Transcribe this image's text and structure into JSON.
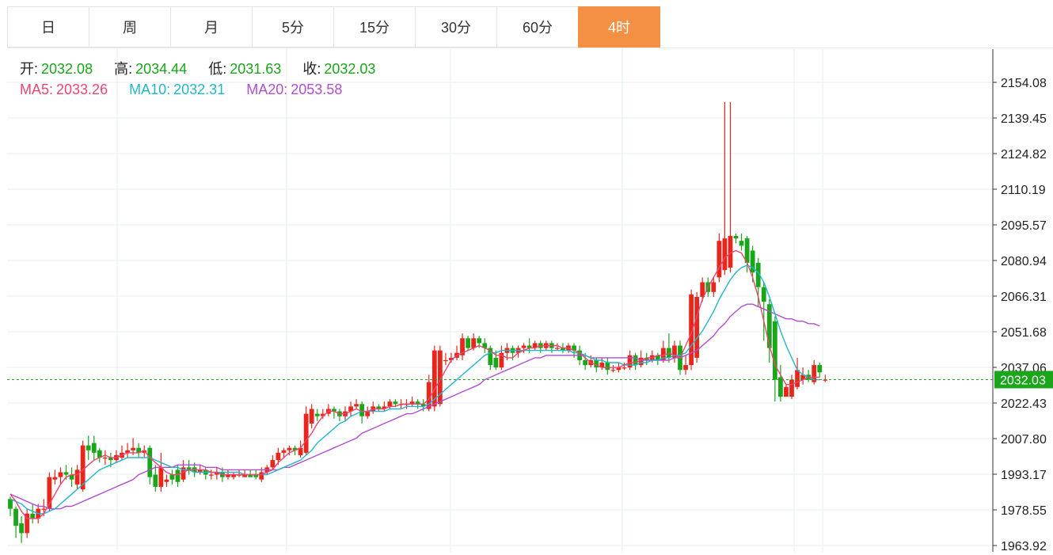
{
  "tabs": [
    "日",
    "周",
    "月",
    "5分",
    "15分",
    "30分",
    "60分",
    "4时"
  ],
  "active_tab": "4时",
  "ohlc": {
    "open_label": "开:",
    "open": "2032.08",
    "high_label": "高:",
    "high": "2034.44",
    "low_label": "低:",
    "low": "2031.63",
    "close_label": "收:",
    "close": "2032.03"
  },
  "ma": {
    "ma5_label": "MA5:",
    "ma5": "2033.26",
    "ma10_label": "MA10:",
    "ma10": "2032.31",
    "ma20_label": "MA20:",
    "ma20": "2053.58"
  },
  "colors": {
    "up": "#e8261c",
    "down": "#1aa51a",
    "ma5": "#e8476f",
    "ma10": "#22b6cc",
    "ma20": "#b04ecf",
    "last_price": "#1aa51a",
    "grid": "#e6edf3"
  },
  "chart_data": {
    "type": "candlestick",
    "y_ticks": [
      "2154.08",
      "2139.45",
      "2124.82",
      "2110.19",
      "2095.57",
      "2080.94",
      "2066.31",
      "2051.68",
      "2037.06",
      "2022.43",
      "2007.80",
      "1993.17",
      "1978.55",
      "1963.92"
    ],
    "ylim": [
      1963.92,
      2154.08
    ],
    "last_price": "2032.03",
    "candles": [
      [
        1983,
        1979,
        1984,
        1976
      ],
      [
        1979,
        1972,
        1980,
        1967
      ],
      [
        1973,
        1969,
        1976,
        1965
      ],
      [
        1969,
        1977,
        1979,
        1967
      ],
      [
        1977,
        1975,
        1981,
        1973
      ],
      [
        1975,
        1979,
        1981,
        1973
      ],
      [
        1979,
        1979,
        1983,
        1976
      ],
      [
        1979,
        1992,
        1994,
        1978
      ],
      [
        1991,
        1992,
        1995,
        1989
      ],
      [
        1992,
        1994,
        1996,
        1989
      ],
      [
        1994,
        1993,
        1997,
        1991
      ],
      [
        1993,
        1991,
        1996,
        1988
      ],
      [
        1989,
        1995,
        1997,
        1987
      ],
      [
        1987,
        2005,
        2007,
        1986
      ],
      [
        2005,
        2003,
        2009,
        1999
      ],
      [
        2006,
        2002,
        2009,
        1999
      ],
      [
        2003,
        2000,
        2004,
        1998
      ],
      [
        2000,
        2000,
        2003,
        1997
      ],
      [
        2000,
        1999,
        2002,
        1996
      ],
      [
        1999,
        2001,
        2003,
        1998
      ],
      [
        2000,
        2002,
        2005,
        1999
      ],
      [
        2002,
        2003,
        2006,
        2000
      ],
      [
        2003,
        2004,
        2008,
        2001
      ],
      [
        2004,
        2002,
        2006,
        2000
      ],
      [
        2002,
        2003,
        2005,
        2000
      ],
      [
        2004,
        1992,
        2005,
        1989
      ],
      [
        1993,
        1988,
        1997,
        1986
      ],
      [
        1988,
        1996,
        2002,
        1986
      ],
      [
        1990,
        1991,
        1993,
        1988
      ],
      [
        1993,
        1991,
        1995,
        1989
      ],
      [
        1995,
        1990,
        1997,
        1988
      ],
      [
        1991,
        1996,
        1999,
        1990
      ],
      [
        1996,
        1995,
        1999,
        1993
      ],
      [
        1996,
        1994,
        1998,
        1992
      ],
      [
        1994,
        1995,
        1997,
        1993
      ],
      [
        1995,
        1993,
        1996,
        1991
      ],
      [
        1993,
        1993,
        1995,
        1991
      ],
      [
        1993,
        1994,
        1996,
        1991
      ],
      [
        1994,
        1992,
        1996,
        1990
      ],
      [
        1992,
        1993,
        1995,
        1991
      ],
      [
        1992,
        1993,
        1994,
        1991
      ],
      [
        1993,
        1993,
        1995,
        1992
      ],
      [
        1992,
        1993,
        1995,
        1992
      ],
      [
        1993,
        1992,
        1995,
        1992
      ],
      [
        1993,
        1992,
        1995,
        1991
      ],
      [
        1991,
        1994,
        1996,
        1990
      ],
      [
        1994,
        1996,
        1997,
        1993
      ],
      [
        1996,
        1999,
        2001,
        1995
      ],
      [
        1999,
        2002,
        2004,
        1997
      ],
      [
        2002,
        2003,
        2004,
        2000
      ],
      [
        2003,
        2004,
        2005,
        2001
      ],
      [
        2004,
        2003,
        2005,
        2001
      ],
      [
        2001,
        2004,
        2007,
        2000
      ],
      [
        2002,
        2018,
        2021,
        2001
      ],
      [
        2014,
        2020,
        2022,
        2012
      ],
      [
        2018,
        2017,
        2020,
        2015
      ],
      [
        2017,
        2018,
        2020,
        2016
      ],
      [
        2018,
        2020,
        2022,
        2017
      ],
      [
        2020,
        2019,
        2021,
        2016
      ],
      [
        2019,
        2017,
        2020,
        2015
      ],
      [
        2017,
        2019,
        2021,
        2015
      ],
      [
        2019,
        2021,
        2023,
        2017
      ],
      [
        2021,
        2022,
        2024,
        2020
      ],
      [
        2022,
        2017,
        2023,
        2014
      ],
      [
        2017,
        2019,
        2021,
        2016
      ],
      [
        2019,
        2021,
        2023,
        2018
      ],
      [
        2021,
        2020,
        2022,
        2019
      ],
      [
        2020,
        2021,
        2023,
        2019
      ],
      [
        2021,
        2023,
        2024,
        2020
      ],
      [
        2023,
        2022,
        2024,
        2021
      ],
      [
        2022,
        2022,
        2024,
        2020
      ],
      [
        2022,
        2022,
        2024,
        2020
      ],
      [
        2022,
        2023,
        2025,
        2021
      ],
      [
        2023,
        2022,
        2024,
        2020
      ],
      [
        2022,
        2021,
        2024,
        2019
      ],
      [
        2020,
        2031,
        2034,
        2019
      ],
      [
        2021,
        2044,
        2046,
        2019
      ],
      [
        2022,
        2044,
        2046,
        2021
      ],
      [
        2040,
        2040,
        2043,
        2038
      ],
      [
        2040,
        2041,
        2043,
        2039
      ],
      [
        2041,
        2043,
        2046,
        2040
      ],
      [
        2042,
        2049,
        2051,
        2040
      ],
      [
        2049,
        2045,
        2050,
        2044
      ],
      [
        2045,
        2049,
        2051,
        2044
      ],
      [
        2049,
        2047,
        2050,
        2045
      ],
      [
        2047,
        2045,
        2049,
        2043
      ],
      [
        2045,
        2038,
        2046,
        2036
      ],
      [
        2041,
        2037,
        2044,
        2036
      ],
      [
        2037,
        2043,
        2046,
        2036
      ],
      [
        2043,
        2045,
        2047,
        2040
      ],
      [
        2045,
        2043,
        2046,
        2040
      ],
      [
        2043,
        2045,
        2046,
        2041
      ],
      [
        2045,
        2046,
        2047,
        2043
      ],
      [
        2046,
        2045,
        2049,
        2043
      ],
      [
        2045,
        2047,
        2048,
        2044
      ],
      [
        2047,
        2045,
        2048,
        2043
      ],
      [
        2045,
        2047,
        2048,
        2044
      ],
      [
        2047,
        2045,
        2048,
        2043
      ],
      [
        2045,
        2045,
        2047,
        2044
      ],
      [
        2045,
        2044,
        2047,
        2043
      ],
      [
        2044,
        2046,
        2047,
        2043
      ],
      [
        2046,
        2044,
        2047,
        2041
      ],
      [
        2044,
        2040,
        2046,
        2038
      ],
      [
        2040,
        2038,
        2043,
        2036
      ],
      [
        2038,
        2040,
        2042,
        2037
      ],
      [
        2040,
        2037,
        2041,
        2035
      ],
      [
        2037,
        2039,
        2041,
        2036
      ],
      [
        2039,
        2036,
        2041,
        2034
      ],
      [
        2036,
        2036,
        2038,
        2035
      ],
      [
        2036,
        2037,
        2039,
        2035
      ],
      [
        2037,
        2037,
        2039,
        2036
      ],
      [
        2037,
        2042,
        2044,
        2036
      ],
      [
        2042,
        2038,
        2043,
        2036
      ],
      [
        2038,
        2041,
        2044,
        2037
      ],
      [
        2041,
        2040,
        2043,
        2038
      ],
      [
        2040,
        2042,
        2044,
        2039
      ],
      [
        2042,
        2040,
        2043,
        2038
      ],
      [
        2040,
        2045,
        2048,
        2039
      ],
      [
        2045,
        2041,
        2051,
        2039
      ],
      [
        2041,
        2046,
        2048,
        2039
      ],
      [
        2046,
        2036,
        2048,
        2034
      ],
      [
        2036,
        2038,
        2042,
        2034
      ],
      [
        2038,
        2067,
        2069,
        2036
      ],
      [
        2041,
        2066,
        2068,
        2039
      ],
      [
        2066,
        2072,
        2074,
        2064
      ],
      [
        2072,
        2068,
        2074,
        2066
      ],
      [
        2068,
        2072,
        2074,
        2066
      ],
      [
        2074,
        2089,
        2092,
        2072
      ],
      [
        2077,
        2090,
        2146,
        2075
      ],
      [
        2078,
        2091,
        2146,
        2076
      ],
      [
        2091,
        2090,
        2092,
        2088
      ],
      [
        2089,
        2087,
        2092,
        2085
      ],
      [
        2090,
        2080,
        2091,
        2076
      ],
      [
        2085,
        2076,
        2087,
        2072
      ],
      [
        2080,
        2070,
        2082,
        2062
      ],
      [
        2070,
        2064,
        2072,
        2048
      ],
      [
        2063,
        2045,
        2065,
        2039
      ],
      [
        2056,
        2032,
        2058,
        2023
      ],
      [
        2033,
        2025,
        2038,
        2023
      ],
      [
        2025,
        2029,
        2030,
        2025
      ],
      [
        2025,
        2032,
        2034,
        2024
      ],
      [
        2029,
        2036,
        2041,
        2028
      ],
      [
        2032,
        2034,
        2037,
        2030
      ],
      [
        2034,
        2032,
        2036,
        2031
      ],
      [
        2031,
        2038,
        2040,
        2030
      ],
      [
        2038,
        2035,
        2039,
        2033
      ],
      [
        2032,
        2032,
        2034,
        2031
      ]
    ],
    "ma5": [
      1985,
      1982,
      1978,
      1975,
      1975,
      1975,
      1977,
      1981,
      1985,
      1989,
      1992,
      1993,
      1993,
      1995,
      1997,
      1999,
      2000,
      2001,
      2000,
      2000,
      2001,
      2002,
      2002,
      2002,
      2003,
      2000,
      1998,
      1996,
      1994,
      1993,
      1993,
      1994,
      1995,
      1995,
      1995,
      1995,
      1994,
      1994,
      1993,
      1993,
      1993,
      1993,
      1993,
      1993,
      1993,
      1993,
      1994,
      1995,
      1998,
      2000,
      2002,
      2003,
      2004,
      2007,
      2010,
      2014,
      2017,
      2019,
      2019,
      2018,
      2018,
      2019,
      2020,
      2019,
      2019,
      2020,
      2020,
      2020,
      2021,
      2021,
      2022,
      2022,
      2022,
      2022,
      2022,
      2024,
      2028,
      2032,
      2036,
      2040,
      2042,
      2043,
      2044,
      2045,
      2046,
      2045,
      2044,
      2042,
      2042,
      2041,
      2041,
      2043,
      2044,
      2045,
      2045,
      2046,
      2046,
      2046,
      2046,
      2045,
      2045,
      2044,
      2043,
      2041,
      2039,
      2038,
      2037,
      2037,
      2037,
      2037,
      2038,
      2039,
      2039,
      2040,
      2041,
      2041,
      2042,
      2042,
      2043,
      2042,
      2041,
      2046,
      2051,
      2058,
      2065,
      2070,
      2074,
      2078,
      2082,
      2084,
      2085,
      2084,
      2080,
      2074,
      2066,
      2056,
      2046,
      2038,
      2034,
      2030,
      2030,
      2031,
      2032,
      2033,
      2033,
      2033
    ],
    "ma10": [
      1983,
      1982,
      1981,
      1979,
      1978,
      1977,
      1977,
      1978,
      1979,
      1981,
      1983,
      1985,
      1987,
      1989,
      1991,
      1993,
      1995,
      1996,
      1997,
      1998,
      1999,
      2000,
      2000,
      2000,
      2000,
      2000,
      1999,
      1998,
      1997,
      1996,
      1996,
      1995,
      1995,
      1994,
      1994,
      1994,
      1994,
      1994,
      1994,
      1994,
      1994,
      1994,
      1993,
      1993,
      1993,
      1993,
      1993,
      1994,
      1995,
      1996,
      1997,
      1998,
      1999,
      2001,
      2003,
      2006,
      2008,
      2010,
      2012,
      2014,
      2015,
      2017,
      2018,
      2019,
      2019,
      2019,
      2019,
      2019,
      2020,
      2020,
      2020,
      2021,
      2021,
      2021,
      2021,
      2022,
      2024,
      2026,
      2028,
      2030,
      2032,
      2034,
      2036,
      2038,
      2040,
      2042,
      2043,
      2043,
      2044,
      2044,
      2044,
      2044,
      2044,
      2044,
      2044,
      2044,
      2044,
      2044,
      2044,
      2044,
      2044,
      2043,
      2043,
      2042,
      2041,
      2040,
      2040,
      2039,
      2039,
      2039,
      2038,
      2038,
      2038,
      2039,
      2039,
      2040,
      2040,
      2041,
      2041,
      2042,
      2042,
      2043,
      2046,
      2049,
      2052,
      2056,
      2060,
      2065,
      2069,
      2073,
      2076,
      2078,
      2079,
      2078,
      2076,
      2072,
      2066,
      2059,
      2052,
      2046,
      2041,
      2036,
      2034,
      2033,
      2032,
      2032
    ],
    "ma20": [
      1985,
      1984,
      1983,
      1982,
      1981,
      1980,
      1980,
      1979,
      1979,
      1979,
      1980,
      1980,
      1981,
      1982,
      1983,
      1984,
      1985,
      1986,
      1987,
      1988,
      1989,
      1990,
      1991,
      1993,
      1994,
      1995,
      1996,
      1996,
      1996,
      1996,
      1997,
      1997,
      1997,
      1997,
      1997,
      1996,
      1996,
      1996,
      1995,
      1995,
      1995,
      1995,
      1995,
      1995,
      1995,
      1995,
      1995,
      1995,
      1995,
      1996,
      1996,
      1997,
      1998,
      1999,
      2000,
      2001,
      2002,
      2003,
      2004,
      2005,
      2006,
      2007,
      2008,
      2010,
      2011,
      2012,
      2013,
      2014,
      2015,
      2016,
      2017,
      2018,
      2018,
      2019,
      2020,
      2021,
      2022,
      2023,
      2024,
      2025,
      2026,
      2027,
      2028,
      2029,
      2030,
      2032,
      2033,
      2034,
      2035,
      2036,
      2037,
      2038,
      2039,
      2040,
      2041,
      2041,
      2042,
      2042,
      2042,
      2042,
      2042,
      2042,
      2042,
      2042,
      2041,
      2041,
      2041,
      2041,
      2041,
      2041,
      2041,
      2041,
      2041,
      2040,
      2040,
      2040,
      2040,
      2040,
      2040,
      2041,
      2041,
      2042,
      2043,
      2044,
      2046,
      2048,
      2050,
      2053,
      2055,
      2058,
      2060,
      2062,
      2063,
      2063,
      2062,
      2061,
      2060,
      2059,
      2058,
      2057,
      2057,
      2056,
      2056,
      2055,
      2055,
      2054
    ]
  }
}
